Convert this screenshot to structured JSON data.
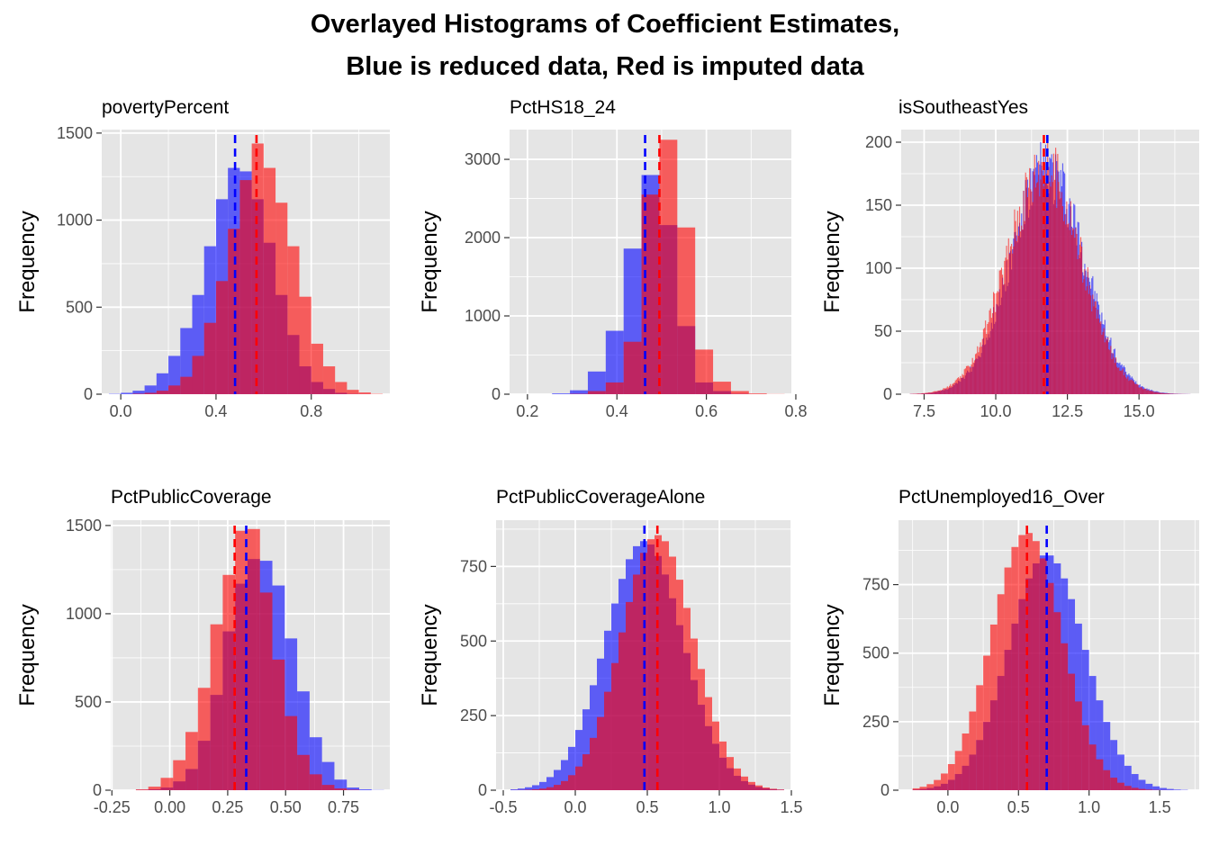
{
  "figure": {
    "title_line1": "Overlayed Histograms of Coefficient Estimates,",
    "title_line2": "Blue is reduced data, Red is imputed data"
  },
  "colors": {
    "panel_bg": "#e5e5e5",
    "grid": "#ffffff",
    "reduced_fill": "#0000ff",
    "imputed_fill": "#ff0000",
    "fill_opacity": 0.6
  },
  "chart_data": [
    {
      "type": "bar",
      "title": "povertyPercent",
      "ylabel": "Frequency",
      "xlim": [
        -0.08,
        1.13
      ],
      "ylim": [
        0,
        1520
      ],
      "xticks": [
        0.0,
        0.4,
        0.8
      ],
      "xtick_labels": [
        "0.0",
        "0.4",
        "0.8"
      ],
      "yticks": [
        0,
        500,
        1000,
        1500
      ],
      "ytick_labels": [
        "0",
        "500",
        "1000",
        "1500"
      ],
      "series": [
        {
          "name": "Blue is reduced data",
          "color": "#0000ff",
          "bins": [
            -0.05,
            1.1
          ],
          "values": [
            2,
            8,
            20,
            50,
            120,
            220,
            380,
            570,
            850,
            1120,
            1300,
            1280,
            1120,
            870,
            570,
            340,
            160,
            70,
            30,
            8,
            2,
            1,
            0
          ],
          "mean": 0.48
        },
        {
          "name": "Red is imputed data",
          "color": "#ff0000",
          "bins": [
            -0.05,
            1.1
          ],
          "values": [
            0,
            0,
            3,
            8,
            20,
            50,
            100,
            220,
            410,
            650,
            950,
            1230,
            1440,
            1300,
            1100,
            850,
            560,
            290,
            160,
            70,
            25,
            10,
            2
          ],
          "mean": 0.57
        }
      ]
    },
    {
      "type": "bar",
      "title": "PctHS18_24",
      "ylabel": "Frequency",
      "xlim": [
        0.16,
        0.79
      ],
      "ylim": [
        0,
        3380
      ],
      "xticks": [
        0.2,
        0.4,
        0.6,
        0.8
      ],
      "xtick_labels": [
        "0.2",
        "0.4",
        "0.6",
        "0.8"
      ],
      "yticks": [
        0,
        1000,
        2000,
        3000
      ],
      "ytick_labels": [
        "0",
        "1000",
        "2000",
        "3000"
      ],
      "series": [
        {
          "name": "Blue is reduced data",
          "color": "#0000ff",
          "bins": [
            0.175,
            0.775
          ],
          "values": [
            0,
            0,
            10,
            50,
            290,
            810,
            1860,
            2800,
            2160,
            870,
            150,
            40,
            5,
            1,
            0
          ],
          "mean": 0.463
        },
        {
          "name": "Red is imputed data",
          "color": "#ff0000",
          "bins": [
            0.175,
            0.775
          ],
          "values": [
            0,
            0,
            0,
            5,
            40,
            150,
            670,
            2550,
            3250,
            2130,
            570,
            160,
            40,
            10,
            2
          ],
          "mean": 0.495
        }
      ]
    },
    {
      "type": "bar",
      "title": "isSoutheastYes",
      "ylabel": "Frequency",
      "xlim": [
        6.7,
        17.1
      ],
      "ylim": [
        0,
        210
      ],
      "xticks": [
        7.5,
        10.0,
        12.5,
        15.0
      ],
      "xtick_labels": [
        "7.5",
        "10.0",
        "12.5",
        "15.0"
      ],
      "yticks": [
        0,
        50,
        100,
        150,
        200
      ],
      "ytick_labels": [
        "0",
        "50",
        "100",
        "150",
        "200"
      ],
      "series": [
        {
          "name": "Blue is reduced data",
          "color": "#0000ff",
          "distribution": "normal",
          "x_range": [
            7.0,
            16.8
          ],
          "peak": 178,
          "mu": 11.8,
          "sd": 1.28,
          "bin_width": 0.035,
          "mean": 11.8
        },
        {
          "name": "Red is imputed data",
          "color": "#ff0000",
          "distribution": "normal",
          "x_range": [
            7.0,
            16.8
          ],
          "peak": 181,
          "mu": 11.68,
          "sd": 1.28,
          "bin_width": 0.035,
          "mean": 11.68
        }
      ]
    },
    {
      "type": "bar",
      "title": "PctPublicCoverage",
      "ylabel": "Frequency",
      "xlim": [
        -0.255,
        0.95
      ],
      "ylim": [
        0,
        1530
      ],
      "xticks": [
        -0.25,
        0.0,
        0.25,
        0.5,
        0.75
      ],
      "xtick_labels": [
        "-0.25",
        "0.00",
        "0.25",
        "0.50",
        "0.75"
      ],
      "yticks": [
        0,
        500,
        1000,
        1500
      ],
      "ytick_labels": [
        "0",
        "500",
        "1000",
        "1500"
      ],
      "series": [
        {
          "name": "Blue is reduced data",
          "color": "#0000ff",
          "bins": [
            -0.2,
            0.925
          ],
          "values": [
            0,
            2,
            5,
            15,
            50,
            120,
            280,
            540,
            900,
            1170,
            1310,
            1300,
            1160,
            860,
            560,
            300,
            160,
            60,
            15,
            5,
            1
          ],
          "mean": 0.33
        },
        {
          "name": "Red is imputed data",
          "color": "#ff0000",
          "bins": [
            -0.2,
            0.925
          ],
          "values": [
            0,
            5,
            20,
            70,
            170,
            330,
            580,
            940,
            1220,
            1470,
            1480,
            1120,
            740,
            420,
            200,
            90,
            30,
            10,
            3,
            0,
            0
          ],
          "mean": 0.28
        }
      ]
    },
    {
      "type": "bar",
      "title": "PctPublicCoverageAlone",
      "ylabel": "Frequency",
      "xlim": [
        -0.55,
        1.5
      ],
      "ylim": [
        0,
        905
      ],
      "xticks": [
        -0.5,
        0.0,
        0.5,
        1.0,
        1.5
      ],
      "xtick_labels": [
        "-0.5",
        "0.0",
        "0.5",
        "1.0",
        "1.5"
      ],
      "yticks": [
        0,
        250,
        500,
        750
      ],
      "ytick_labels": [
        "0",
        "250",
        "500",
        "750"
      ],
      "series": [
        {
          "name": "Blue is reduced data",
          "color": "#0000ff",
          "distribution": "normal",
          "x_range": [
            -0.45,
            1.45
          ],
          "peak": 835,
          "mu": 0.48,
          "sd": 0.27,
          "bin_width": 0.05,
          "mean": 0.48
        },
        {
          "name": "Red is imputed data",
          "color": "#ff0000",
          "distribution": "normal",
          "x_range": [
            -0.45,
            1.45
          ],
          "peak": 855,
          "mu": 0.57,
          "sd": 0.25,
          "bin_width": 0.05,
          "mean": 0.57
        }
      ]
    },
    {
      "type": "bar",
      "title": "PctUnemployed16_Over",
      "ylabel": "Frequency",
      "xlim": [
        -0.35,
        1.78
      ],
      "ylim": [
        0,
        985
      ],
      "xticks": [
        0.0,
        0.5,
        1.0,
        1.5
      ],
      "xtick_labels": [
        "0.0",
        "0.5",
        "1.0",
        "1.5"
      ],
      "yticks": [
        0,
        250,
        500,
        750
      ],
      "ytick_labels": [
        "0",
        "250",
        "500",
        "750"
      ],
      "series": [
        {
          "name": "Blue is reduced data",
          "color": "#0000ff",
          "distribution": "normal",
          "x_range": [
            -0.25,
            1.7
          ],
          "peak": 860,
          "mu": 0.7,
          "sd": 0.27,
          "bin_width": 0.05,
          "mean": 0.7
        },
        {
          "name": "Red is imputed data",
          "color": "#ff0000",
          "distribution": "normal",
          "x_range": [
            -0.25,
            1.7
          ],
          "peak": 940,
          "mu": 0.56,
          "sd": 0.25,
          "bin_width": 0.05,
          "mean": 0.56
        }
      ]
    }
  ]
}
